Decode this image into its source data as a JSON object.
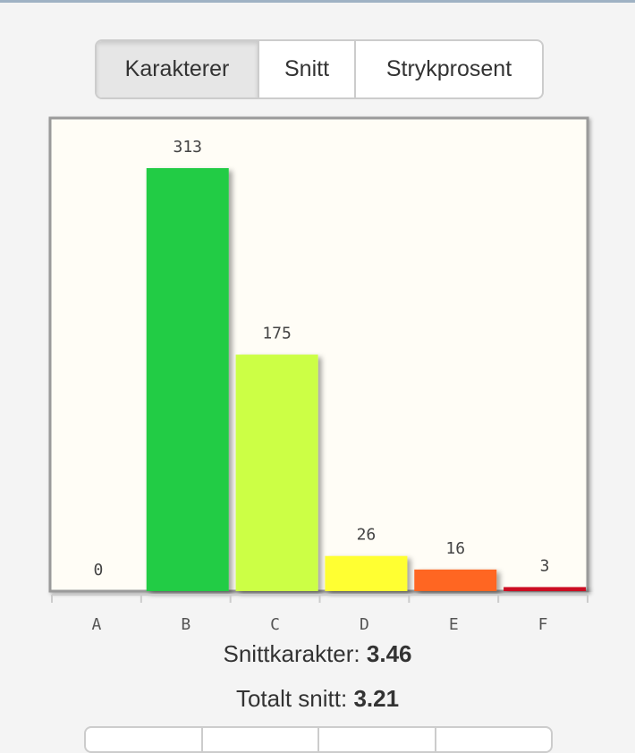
{
  "tabs": [
    {
      "label": "Karakterer",
      "active": true
    },
    {
      "label": "Snitt",
      "active": false
    },
    {
      "label": "Strykprosent",
      "active": false
    }
  ],
  "chart_data": {
    "type": "bar",
    "categories": [
      "A",
      "B",
      "C",
      "D",
      "E",
      "F"
    ],
    "values": [
      0,
      313,
      175,
      26,
      16,
      3
    ],
    "bar_colors": [
      "#22cc44",
      "#22cc44",
      "#ccff44",
      "#ffff33",
      "#ff6622",
      "#cc1122"
    ],
    "data_labels": true,
    "grid": false,
    "legend": "none",
    "background": "#fffdf6"
  },
  "stats": {
    "snittkarakter_label": "Snittkarakter:",
    "snittkarakter_value": "3.46",
    "totalt_label": "Totalt snitt:",
    "totalt_value": "3.21"
  }
}
